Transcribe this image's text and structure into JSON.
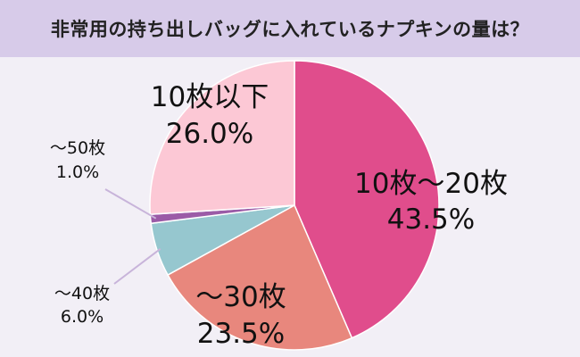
{
  "chart_data": {
    "type": "pie",
    "title": "非常用の持ち出しバッグに入れているナプキンの量は？",
    "slices": [
      {
        "label": "10枚〜20枚",
        "value": 43.5,
        "display": "43.5%",
        "color": "#e04d8c"
      },
      {
        "label": "〜30枚",
        "value": 23.5,
        "display": "23.5%",
        "color": "#e8877d"
      },
      {
        "label": "〜40枚",
        "value": 6.0,
        "display": "6.0%",
        "color": "#96c7cf"
      },
      {
        "label": "〜50枚",
        "value": 1.0,
        "display": "1.0%",
        "color": "#9b5ba7"
      },
      {
        "label": "10枚以下",
        "value": 26.0,
        "display": "26.0%",
        "color": "#fcc8d5"
      }
    ],
    "start": "12 o'clock",
    "direction": "clockwise"
  },
  "colors": {
    "background": "#f2eff6",
    "title_band": "#d7cbe9",
    "leader_line": "#c8b4da"
  }
}
